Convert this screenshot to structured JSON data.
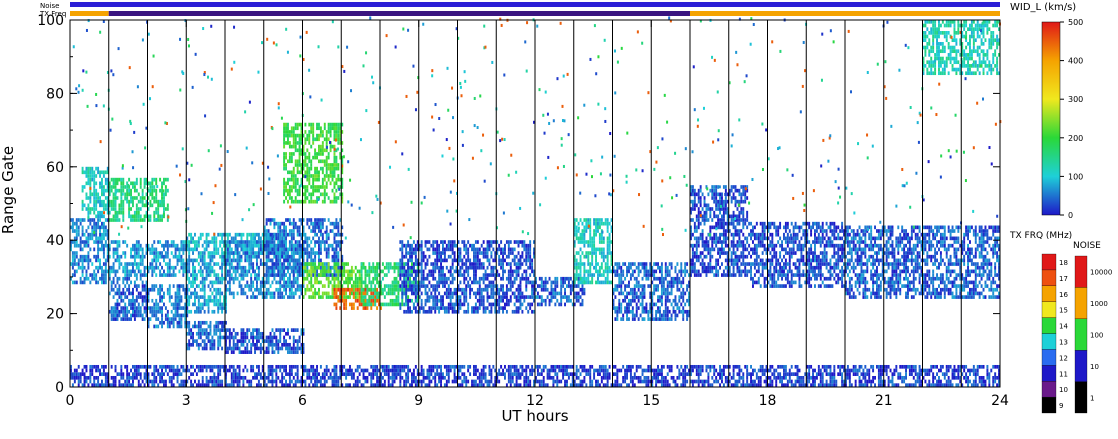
{
  "chart_data": {
    "type": "heatmap",
    "xlabel": "UT hours",
    "ylabel": "Range Gate",
    "xlim": [
      0,
      24
    ],
    "ylim": [
      0,
      100
    ],
    "xticks": [
      "0",
      "3",
      "6",
      "9",
      "12",
      "15",
      "18",
      "21",
      "24"
    ],
    "yticks": [
      "0",
      "20",
      "40",
      "60",
      "80",
      "100"
    ],
    "status_bars": {
      "noise_label": "Noise",
      "txfreq_label": "TX Freq",
      "noise_color": "#2b1ed6",
      "txfreq_segments": [
        {
          "start": 0.0,
          "end": 1.0,
          "color": "#f5a300"
        },
        {
          "start": 1.0,
          "end": 16.0,
          "color": "#3a1580"
        },
        {
          "start": 16.0,
          "end": 24.0,
          "color": "#f5a300"
        }
      ]
    },
    "scan_boundaries_hours": [
      1.0,
      2.0,
      3.0,
      4.0,
      5.0,
      6.0,
      7.0,
      8.0,
      9.0,
      10.0,
      11.0,
      12.0,
      13.0,
      14.0,
      15.0,
      16.0,
      17.0,
      18.0,
      19.0,
      20.0,
      21.0,
      22.0,
      23.0
    ],
    "width_colorbar": {
      "title": "WID_L (km/s)",
      "range": [
        0,
        500
      ],
      "ticks": [
        "0",
        "100",
        "200",
        "300",
        "400",
        "500"
      ]
    },
    "txfreq_colorbar": {
      "title": "TX FRQ (MHz)",
      "ticks": [
        "9",
        "10",
        "11",
        "12",
        "13",
        "14",
        "15",
        "16",
        "17",
        "18"
      ],
      "colors": [
        "#000000",
        "#6a1a8a",
        "#1e18c8",
        "#2a6cf0",
        "#1ed0d8",
        "#2ad838",
        "#f0e81e",
        "#f5a300",
        "#ee5010",
        "#e01818"
      ]
    },
    "noise_colorbar": {
      "title": "NOISE",
      "ticks": [
        "1",
        "10",
        "100",
        "1000",
        "10000"
      ],
      "colors": [
        "#000000",
        "#1e18c8",
        "#2ad838",
        "#f5a300",
        "#e01818"
      ]
    },
    "backscatter_regions": [
      {
        "t0": 0.0,
        "t1": 1.0,
        "g0": 28,
        "g1": 46,
        "width": 60
      },
      {
        "t0": 0.3,
        "t1": 1.0,
        "g0": 46,
        "g1": 60,
        "width": 110
      },
      {
        "t0": 1.0,
        "t1": 2.0,
        "g0": 18,
        "g1": 30,
        "width": 40
      },
      {
        "t0": 1.0,
        "t1": 3.0,
        "g0": 30,
        "g1": 40,
        "width": 70
      },
      {
        "t0": 1.0,
        "t1": 2.5,
        "g0": 45,
        "g1": 57,
        "width": 150
      },
      {
        "t0": 2.0,
        "t1": 3.0,
        "g0": 16,
        "g1": 28,
        "width": 50
      },
      {
        "t0": 3.0,
        "t1": 4.0,
        "g0": 20,
        "g1": 36,
        "width": 80
      },
      {
        "t0": 3.0,
        "t1": 5.5,
        "g0": 36,
        "g1": 42,
        "width": 90
      },
      {
        "t0": 3.0,
        "t1": 4.0,
        "g0": 10,
        "g1": 18,
        "width": 40
      },
      {
        "t0": 4.0,
        "t1": 6.0,
        "g0": 9,
        "g1": 16,
        "width": 30
      },
      {
        "t0": 4.0,
        "t1": 6.0,
        "g0": 24,
        "g1": 40,
        "width": 60
      },
      {
        "t0": 5.0,
        "t1": 7.0,
        "g0": 30,
        "g1": 46,
        "width": 50
      },
      {
        "t0": 5.5,
        "t1": 7.0,
        "g0": 50,
        "g1": 72,
        "width": 200
      },
      {
        "t0": 6.0,
        "t1": 7.5,
        "g0": 24,
        "g1": 34,
        "width": 220
      },
      {
        "t0": 6.8,
        "t1": 8.0,
        "g0": 21,
        "g1": 27,
        "width": 450
      },
      {
        "t0": 7.5,
        "t1": 9.0,
        "g0": 22,
        "g1": 34,
        "width": 160
      },
      {
        "t0": 8.5,
        "t1": 12.0,
        "g0": 20,
        "g1": 40,
        "width": 30
      },
      {
        "t0": 12.0,
        "t1": 13.3,
        "g0": 22,
        "g1": 30,
        "width": 40
      },
      {
        "t0": 13.0,
        "t1": 14.0,
        "g0": 28,
        "g1": 46,
        "width": 110
      },
      {
        "t0": 14.0,
        "t1": 16.0,
        "g0": 18,
        "g1": 34,
        "width": 40
      },
      {
        "t0": 16.0,
        "t1": 17.5,
        "g0": 30,
        "g1": 55,
        "width": 30
      },
      {
        "t0": 17.5,
        "t1": 20.0,
        "g0": 27,
        "g1": 45,
        "width": 30
      },
      {
        "t0": 20.0,
        "t1": 24.0,
        "g0": 24,
        "g1": 44,
        "width": 40
      },
      {
        "t0": 0.0,
        "t1": 24.0,
        "g0": 0,
        "g1": 6,
        "width": 20
      },
      {
        "t0": 22.0,
        "t1": 24.0,
        "g0": 85,
        "g1": 100,
        "width": 120
      }
    ]
  }
}
